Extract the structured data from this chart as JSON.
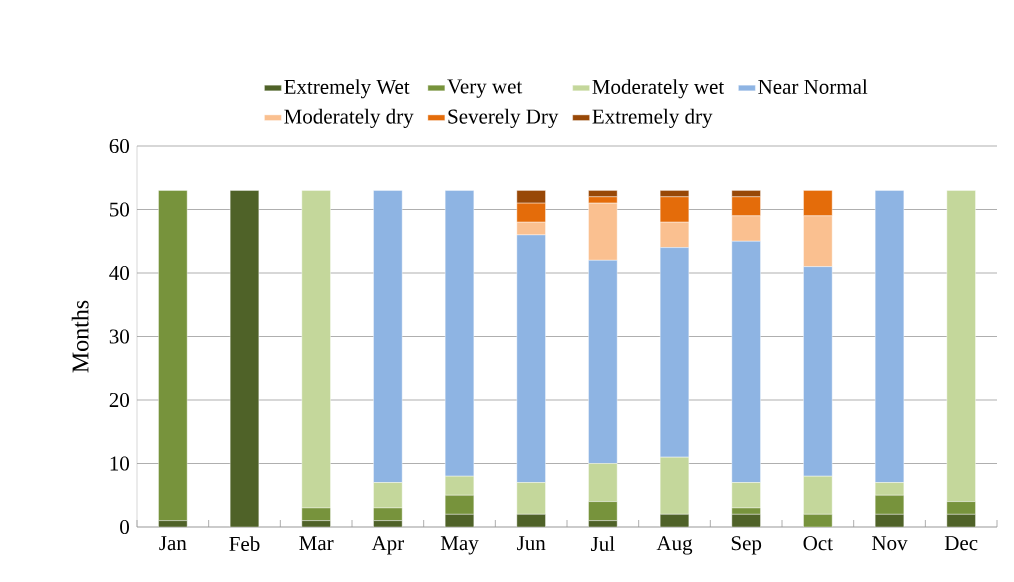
{
  "chart_data": {
    "type": "bar",
    "stacked": true,
    "ylabel": "Months",
    "categories": [
      "Jan",
      "Feb",
      "Mar",
      "Apr",
      "May",
      "Jun",
      "Jul",
      "Aug",
      "Sep",
      "Oct",
      "Nov",
      "Dec"
    ],
    "series": [
      {
        "name": "Extremely Wet",
        "color": "#4f6228",
        "values": [
          1,
          53,
          1,
          1,
          2,
          2,
          1,
          2,
          2,
          0,
          2,
          2
        ]
      },
      {
        "name": "Very wet",
        "color": "#77933c",
        "values": [
          52,
          0,
          2,
          2,
          3,
          0,
          3,
          0,
          1,
          2,
          3,
          2
        ]
      },
      {
        "name": "Moderately wet",
        "color": "#c4d79b",
        "values": [
          0,
          0,
          50,
          4,
          3,
          5,
          6,
          9,
          4,
          6,
          2,
          49
        ]
      },
      {
        "name": "Near Normal",
        "color": "#8eb4e3",
        "values": [
          0,
          0,
          0,
          46,
          45,
          39,
          32,
          33,
          38,
          33,
          46,
          0
        ]
      },
      {
        "name": "Moderately dry",
        "color": "#fac090",
        "values": [
          0,
          0,
          0,
          0,
          0,
          2,
          9,
          4,
          4,
          8,
          0,
          0
        ]
      },
      {
        "name": "Severely Dry",
        "color": "#e46c0a",
        "values": [
          0,
          0,
          0,
          0,
          0,
          3,
          1,
          4,
          3,
          4,
          0,
          0
        ]
      },
      {
        "name": "Extremely dry",
        "color": "#984807",
        "values": [
          0,
          0,
          0,
          0,
          0,
          2,
          1,
          1,
          1,
          0,
          0,
          0
        ]
      }
    ],
    "ylim": [
      0,
      60
    ],
    "yticks": [
      0,
      10,
      20,
      30,
      40,
      50,
      60
    ],
    "grid": "y",
    "legend": "top"
  }
}
